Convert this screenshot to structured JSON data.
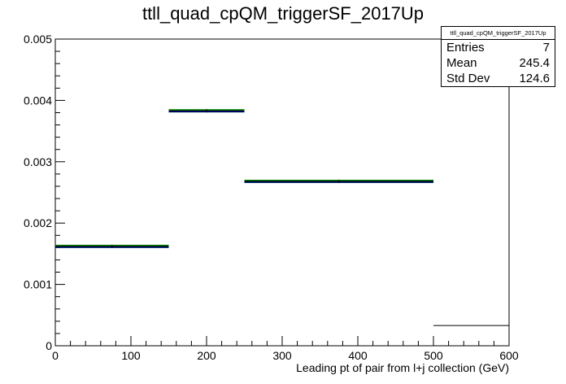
{
  "chart_data": {
    "type": "histogram",
    "title": "ttll_quad_cpQM_triggerSF_2017Up",
    "xlabel": "Leading pt of pair from l+j collection (GeV)",
    "ylabel": "",
    "xlim": [
      0,
      600
    ],
    "ylim": [
      0,
      0.005
    ],
    "x_ticks": [
      "0",
      "100",
      "200",
      "300",
      "400",
      "500",
      "600"
    ],
    "y_ticks": [
      "0",
      "0.001",
      "0.002",
      "0.003",
      "0.004",
      "0.005"
    ],
    "grid": false,
    "bins": [
      {
        "x_low": 0,
        "x_high": 150,
        "value": 0.00162
      },
      {
        "x_low": 150,
        "x_high": 250,
        "value": 0.00383
      },
      {
        "x_low": 250,
        "x_high": 500,
        "value": 0.00268
      },
      {
        "x_low": 500,
        "x_high": 600,
        "value": 0.00033
      }
    ],
    "band_colors": [
      "#008000",
      "#000099"
    ],
    "line_color": "#000000",
    "stats_box": {
      "title": "ttll_quad_cpQM_triggerSF_2017Up",
      "placement": "top-right",
      "rows": [
        {
          "label": "Entries",
          "value": "7"
        },
        {
          "label": "Mean",
          "value": "245.4"
        },
        {
          "label": "Std Dev",
          "value": "124.6"
        }
      ]
    }
  }
}
